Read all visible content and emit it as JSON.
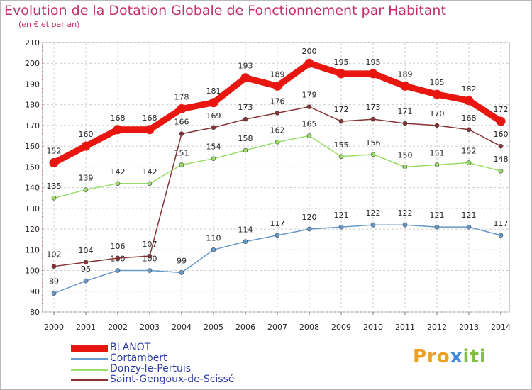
{
  "header": {
    "title": "Evolution de la Dotation Globale de Fonctionnement par Habitant",
    "subtitle": "(en € et par an)"
  },
  "logo": {
    "text": "Proxiti"
  },
  "chart_data": {
    "type": "line",
    "title": "Evolution de la Dotation Globale de Fonctionnement par Habitant",
    "subtitle": "(en € et par an)",
    "xlabel": "",
    "ylabel": "",
    "x": [
      "2000",
      "2001",
      "2002",
      "2003",
      "2004",
      "2005",
      "2006",
      "2007",
      "2008",
      "2009",
      "2010",
      "2011",
      "2012",
      "2013",
      "2014"
    ],
    "ylim": [
      80,
      210
    ],
    "yticks": [
      80,
      90,
      100,
      110,
      120,
      130,
      140,
      150,
      160,
      170,
      180,
      190,
      200,
      210
    ],
    "grid": true,
    "legend_position": "bottom-left",
    "series": [
      {
        "name": "BLANOT",
        "color": "#e8160f",
        "values": [
          152,
          160,
          168,
          168,
          178,
          181,
          193,
          189,
          200,
          195,
          195,
          189,
          185,
          182,
          172
        ]
      },
      {
        "name": "Cortambert",
        "color": "#6699cc",
        "values": [
          89,
          95,
          100,
          100,
          99,
          110,
          114,
          117,
          120,
          121,
          122,
          122,
          121,
          121,
          117
        ]
      },
      {
        "name": "Donzy-le-Pertuis",
        "color": "#99dd66",
        "values": [
          135,
          139,
          142,
          142,
          151,
          154,
          158,
          162,
          165,
          155,
          156,
          150,
          151,
          152,
          148
        ]
      },
      {
        "name": "Saint-Gengoux-de-Scissé",
        "color": "#883333",
        "values": [
          102,
          104,
          106,
          107,
          166,
          169,
          173,
          176,
          179,
          172,
          173,
          171,
          170,
          168,
          160
        ]
      }
    ]
  }
}
